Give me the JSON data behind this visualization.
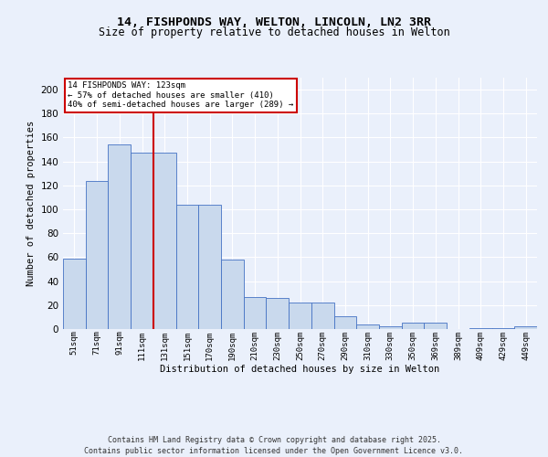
{
  "title1": "14, FISHPONDS WAY, WELTON, LINCOLN, LN2 3RR",
  "title2": "Size of property relative to detached houses in Welton",
  "xlabel": "Distribution of detached houses by size in Welton",
  "ylabel": "Number of detached properties",
  "categories": [
    "51sqm",
    "71sqm",
    "91sqm",
    "111sqm",
    "131sqm",
    "151sqm",
    "170sqm",
    "190sqm",
    "210sqm",
    "230sqm",
    "250sqm",
    "270sqm",
    "290sqm",
    "310sqm",
    "330sqm",
    "350sqm",
    "369sqm",
    "389sqm",
    "409sqm",
    "429sqm",
    "449sqm"
  ],
  "values": [
    59,
    124,
    154,
    147,
    147,
    104,
    104,
    58,
    27,
    26,
    22,
    22,
    11,
    4,
    2,
    5,
    5,
    0,
    1,
    1,
    2
  ],
  "bar_color": "#c9d9ed",
  "bar_edge_color": "#4472c4",
  "red_line_x": 4.0,
  "annotation_text": "14 FISHPONDS WAY: 123sqm\n← 57% of detached houses are smaller (410)\n40% of semi-detached houses are larger (289) →",
  "annotation_box_color": "#ffffff",
  "annotation_box_edge": "#cc0000",
  "red_line_color": "#cc0000",
  "ylim": [
    0,
    210
  ],
  "yticks": [
    0,
    20,
    40,
    60,
    80,
    100,
    120,
    140,
    160,
    180,
    200
  ],
  "footer": "Contains HM Land Registry data © Crown copyright and database right 2025.\nContains public sector information licensed under the Open Government Licence v3.0.",
  "bg_color": "#eaf0fb",
  "plot_bg_color": "#eaf0fb"
}
